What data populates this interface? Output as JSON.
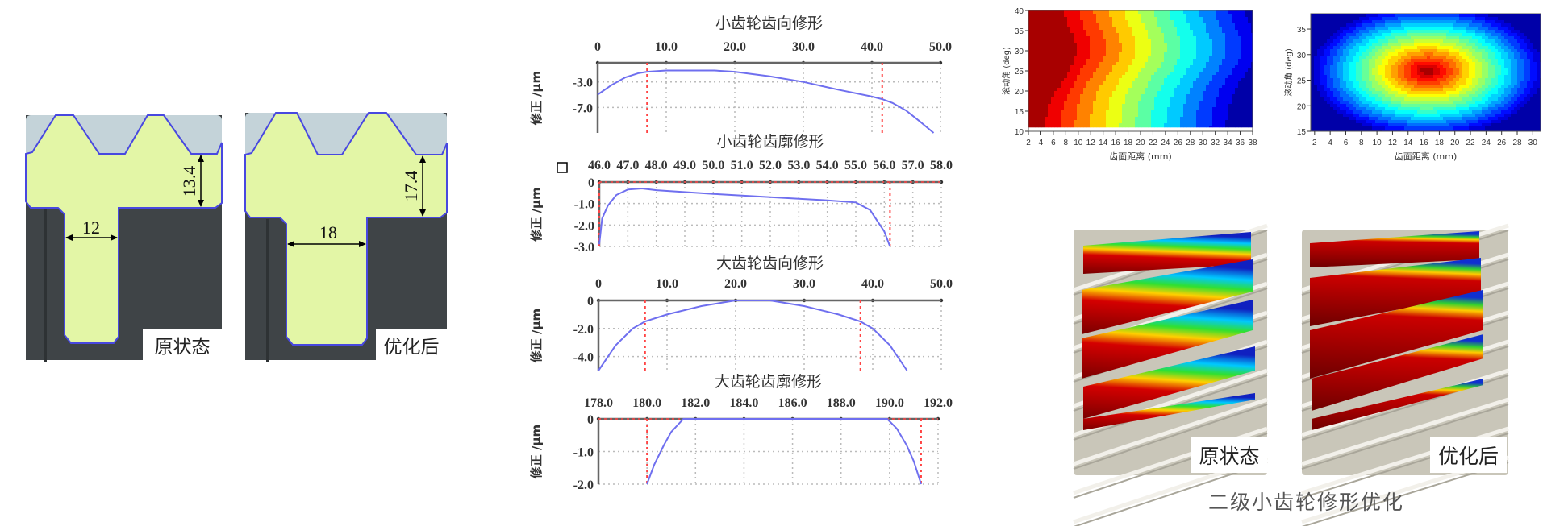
{
  "figure_a": {
    "panels": [
      {
        "label": "原状态",
        "dim_height": "13.4",
        "dim_width": "12"
      },
      {
        "label": "优化后",
        "dim_height": "17.4",
        "dim_width": "18"
      }
    ]
  },
  "colors": {
    "curve": "#6f6fef",
    "marker": "#ff4444",
    "gear_body": "#e3f6a6",
    "gear_outline": "#4848e0",
    "housing": "#3f4447"
  },
  "chart_data": [
    {
      "type": "line",
      "title": "小齿轮齿向修形",
      "ylabel": "修正 /μm",
      "xlim": [
        0,
        50
      ],
      "ylim": [
        -11,
        0
      ],
      "xticks": [
        0,
        10,
        20,
        30,
        40,
        50
      ],
      "xtick_labels": [
        "0",
        "10.0",
        "20.0",
        "30.0",
        "40.0",
        "50.0"
      ],
      "yticks": [
        -3,
        -7
      ],
      "ytick_labels": [
        "-3.0",
        "-7.0"
      ],
      "x_axis_position": "top",
      "grid": true,
      "series": [
        {
          "points": [
            [
              0,
              -5
            ],
            [
              2,
              -3.5
            ],
            [
              4,
              -2.3
            ],
            [
              6,
              -1.6
            ],
            [
              7.2,
              -1.4
            ],
            [
              10,
              -1.2
            ],
            [
              15,
              -1.2
            ],
            [
              17,
              -1.2
            ],
            [
              20,
              -1.4
            ],
            [
              25,
              -2.1
            ],
            [
              30,
              -3
            ],
            [
              35,
              -4.2
            ],
            [
              40,
              -5.3
            ],
            [
              41.5,
              -5.7
            ],
            [
              43,
              -6.3
            ],
            [
              45,
              -7.5
            ],
            [
              47,
              -9.2
            ],
            [
              49,
              -11
            ]
          ]
        }
      ],
      "markers_x": [
        7.2,
        41.5
      ],
      "markers_y": []
    },
    {
      "type": "line",
      "title": "小齿轮齿廓修形",
      "ylabel": "修正 /μm",
      "xlim": [
        46,
        58
      ],
      "ylim": [
        -3,
        0
      ],
      "xticks": [
        46,
        47,
        48,
        49,
        50,
        51,
        52,
        53,
        54,
        55,
        56,
        57,
        58
      ],
      "xtick_labels": [
        "46.0",
        "47.0",
        "48.0",
        "49.0",
        "50.0",
        "51.0",
        "52.0",
        "53.0",
        "54.0",
        "55.0",
        "56.0",
        "57.0",
        "58.0"
      ],
      "yticks": [
        0,
        -1,
        -2,
        -3
      ],
      "ytick_labels": [
        "0",
        "-1.0",
        "-2.0",
        "-3.0"
      ],
      "x_axis_position": "top",
      "grid": true,
      "series": [
        {
          "points": [
            [
              46,
              -2.9
            ],
            [
              46.1,
              -1.7
            ],
            [
              46.3,
              -1.1
            ],
            [
              46.6,
              -0.6
            ],
            [
              47,
              -0.35
            ],
            [
              47.5,
              -0.3
            ],
            [
              48,
              -0.38
            ],
            [
              50,
              -0.55
            ],
            [
              52,
              -0.7
            ],
            [
              54,
              -0.85
            ],
            [
              55,
              -0.95
            ],
            [
              55.5,
              -1.3
            ],
            [
              56,
              -2.3
            ],
            [
              56.2,
              -3
            ]
          ]
        }
      ],
      "markers_x": [
        46.0,
        56.2
      ],
      "markers_y": [
        0
      ]
    },
    {
      "type": "line",
      "title": "大齿轮齿向修形",
      "ylabel": "修正 /μm",
      "xlim": [
        0,
        50
      ],
      "ylim": [
        -5,
        0
      ],
      "xticks": [
        0,
        10,
        20,
        30,
        40,
        50
      ],
      "xtick_labels": [
        "0",
        "10.0",
        "20.0",
        "30.0",
        "40.0",
        "50.0"
      ],
      "yticks": [
        0,
        -2,
        -4
      ],
      "ytick_labels": [
        "0",
        "-2.0",
        "-4.0"
      ],
      "x_axis_position": "top",
      "grid": true,
      "series": [
        {
          "points": [
            [
              0,
              -5
            ],
            [
              2.5,
              -3.2
            ],
            [
              5,
              -2
            ],
            [
              6.8,
              -1.5
            ],
            [
              10,
              -1
            ],
            [
              15,
              -0.4
            ],
            [
              20,
              0
            ],
            [
              25,
              0
            ],
            [
              30,
              -0.4
            ],
            [
              35,
              -1
            ],
            [
              38.2,
              -1.5
            ],
            [
              40,
              -2
            ],
            [
              42.5,
              -3.2
            ],
            [
              45,
              -5
            ]
          ]
        }
      ],
      "markers_x": [
        6.8,
        38.2
      ],
      "markers_y": []
    },
    {
      "type": "line",
      "title": "大齿轮齿廓修形",
      "ylabel": "修正 /μm",
      "xlim": [
        178,
        192
      ],
      "ylim": [
        -2,
        0
      ],
      "xticks": [
        178,
        180,
        182,
        184,
        186,
        188,
        190,
        192
      ],
      "xtick_labels": [
        "178.0",
        "180.0",
        "182.0",
        "184.0",
        "186.0",
        "188.0",
        "190.0",
        "192.0"
      ],
      "yticks": [
        0,
        -1,
        -2
      ],
      "ytick_labels": [
        "0",
        "-1.0",
        "-2.0"
      ],
      "x_axis_position": "top",
      "grid": true,
      "series": [
        {
          "points": [
            [
              180,
              -2
            ],
            [
              180.3,
              -1.4
            ],
            [
              180.7,
              -0.8
            ],
            [
              181,
              -0.4
            ],
            [
              181.5,
              0
            ],
            [
              189.9,
              0
            ],
            [
              190.3,
              -0.3
            ],
            [
              190.7,
              -0.8
            ],
            [
              191,
              -1.3
            ],
            [
              191.3,
              -2
            ]
          ]
        }
      ],
      "markers_x": [
        180.0,
        191.3
      ],
      "markers_y": [
        0
      ]
    },
    {
      "type": "heatmap",
      "style": "filled-contour",
      "colormap": "jet",
      "xlabel": "齿面距离 (mm)",
      "ylabel": "滚动角 (deg)",
      "xlim": [
        2,
        38
      ],
      "ylim": [
        10,
        40
      ],
      "xticks": [
        2,
        4,
        6,
        8,
        10,
        12,
        14,
        16,
        18,
        20,
        22,
        24,
        26,
        28,
        30,
        32,
        34,
        36,
        38
      ],
      "yticks": [
        10,
        15,
        20,
        25,
        30,
        35,
        40
      ],
      "peak": {
        "x": 2,
        "y": 25
      }
    },
    {
      "type": "heatmap",
      "style": "filled-contour",
      "colormap": "jet",
      "xlabel": "齿面距离 (mm)",
      "ylabel": "滚动角 (deg)",
      "xlim": [
        1.5,
        31
      ],
      "ylim": [
        15,
        38
      ],
      "xticks": [
        2,
        4,
        6,
        8,
        10,
        12,
        14,
        16,
        18,
        20,
        22,
        24,
        26,
        28,
        30
      ],
      "yticks": [
        15,
        20,
        25,
        30,
        35
      ],
      "peak": {
        "x": 16.5,
        "y": 26.8
      }
    }
  ],
  "figure_c": {
    "labels": [
      "原状态",
      "优化后"
    ],
    "caption": "二级小齿轮修形优化"
  }
}
